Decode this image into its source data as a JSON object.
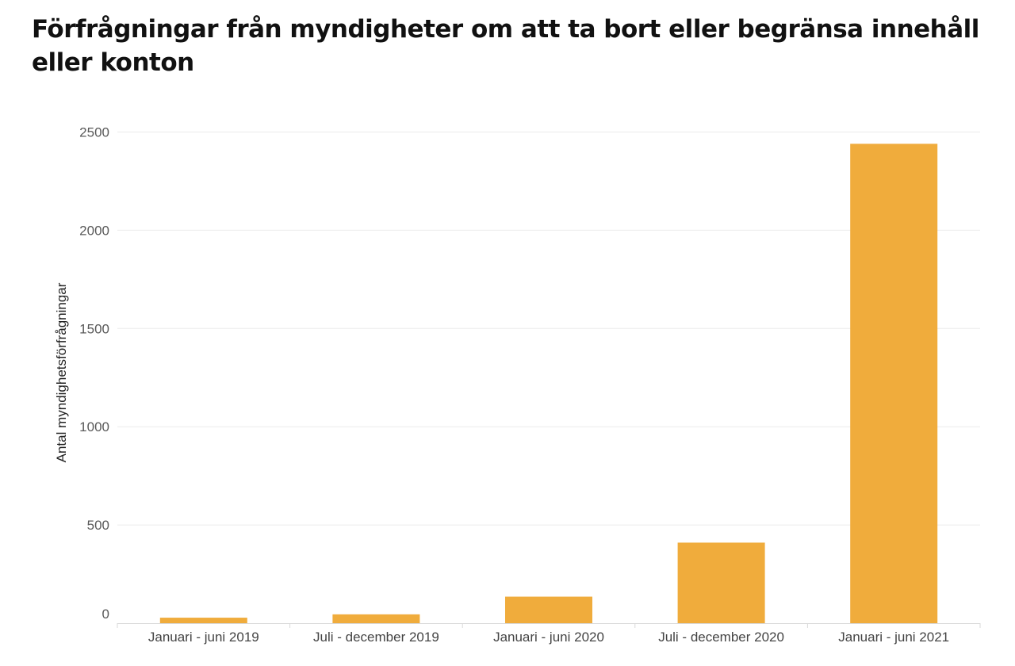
{
  "chart_data": {
    "type": "bar",
    "title": "Förfrågningar från myndigheter om att ta bort eller begränsa innehåll eller konton",
    "ylabel": "Antal myndighetsförfrågningar",
    "xlabel": "",
    "categories": [
      "Januari - juni 2019",
      "Juli - december 2019",
      "Januari - juni 2020",
      "Juli - december 2020",
      "Januari - juni 2021"
    ],
    "values": [
      28,
      45,
      135,
      410,
      2440
    ],
    "ylim": [
      0,
      2550
    ],
    "yticks": [
      0,
      500,
      1000,
      1500,
      2000,
      2500
    ],
    "grid": true,
    "legend": "none",
    "bar_color": "#F0AC3C",
    "grid_color": "#EBEBEB"
  }
}
